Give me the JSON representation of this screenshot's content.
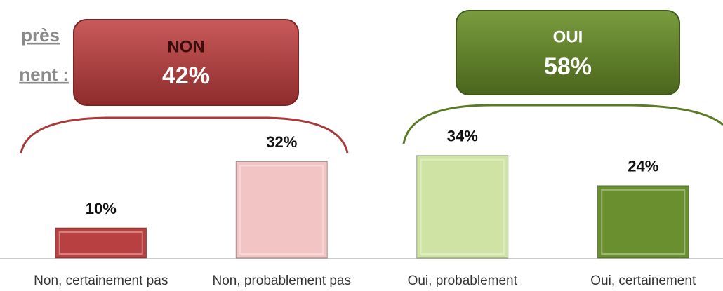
{
  "chart_data": {
    "type": "bar",
    "categories": [
      "Non, certainement pas",
      "Non, probablement pas",
      "Oui, probablement",
      "Oui, certainement"
    ],
    "values": [
      10,
      32,
      34,
      24
    ],
    "value_labels": [
      "10%",
      "32%",
      "34%",
      "24%"
    ],
    "colors": [
      "#b84040",
      "#f2c4c4",
      "#cfe3a4",
      "#6a8f2e"
    ],
    "ylim": [
      0,
      80
    ],
    "groups": [
      {
        "name": "NON",
        "total": "42%",
        "color": "#a83a3a"
      },
      {
        "name": "OUI",
        "total": "58%",
        "color": "#5b7a26"
      }
    ],
    "cut_text": [
      "près",
      "nent :"
    ]
  }
}
